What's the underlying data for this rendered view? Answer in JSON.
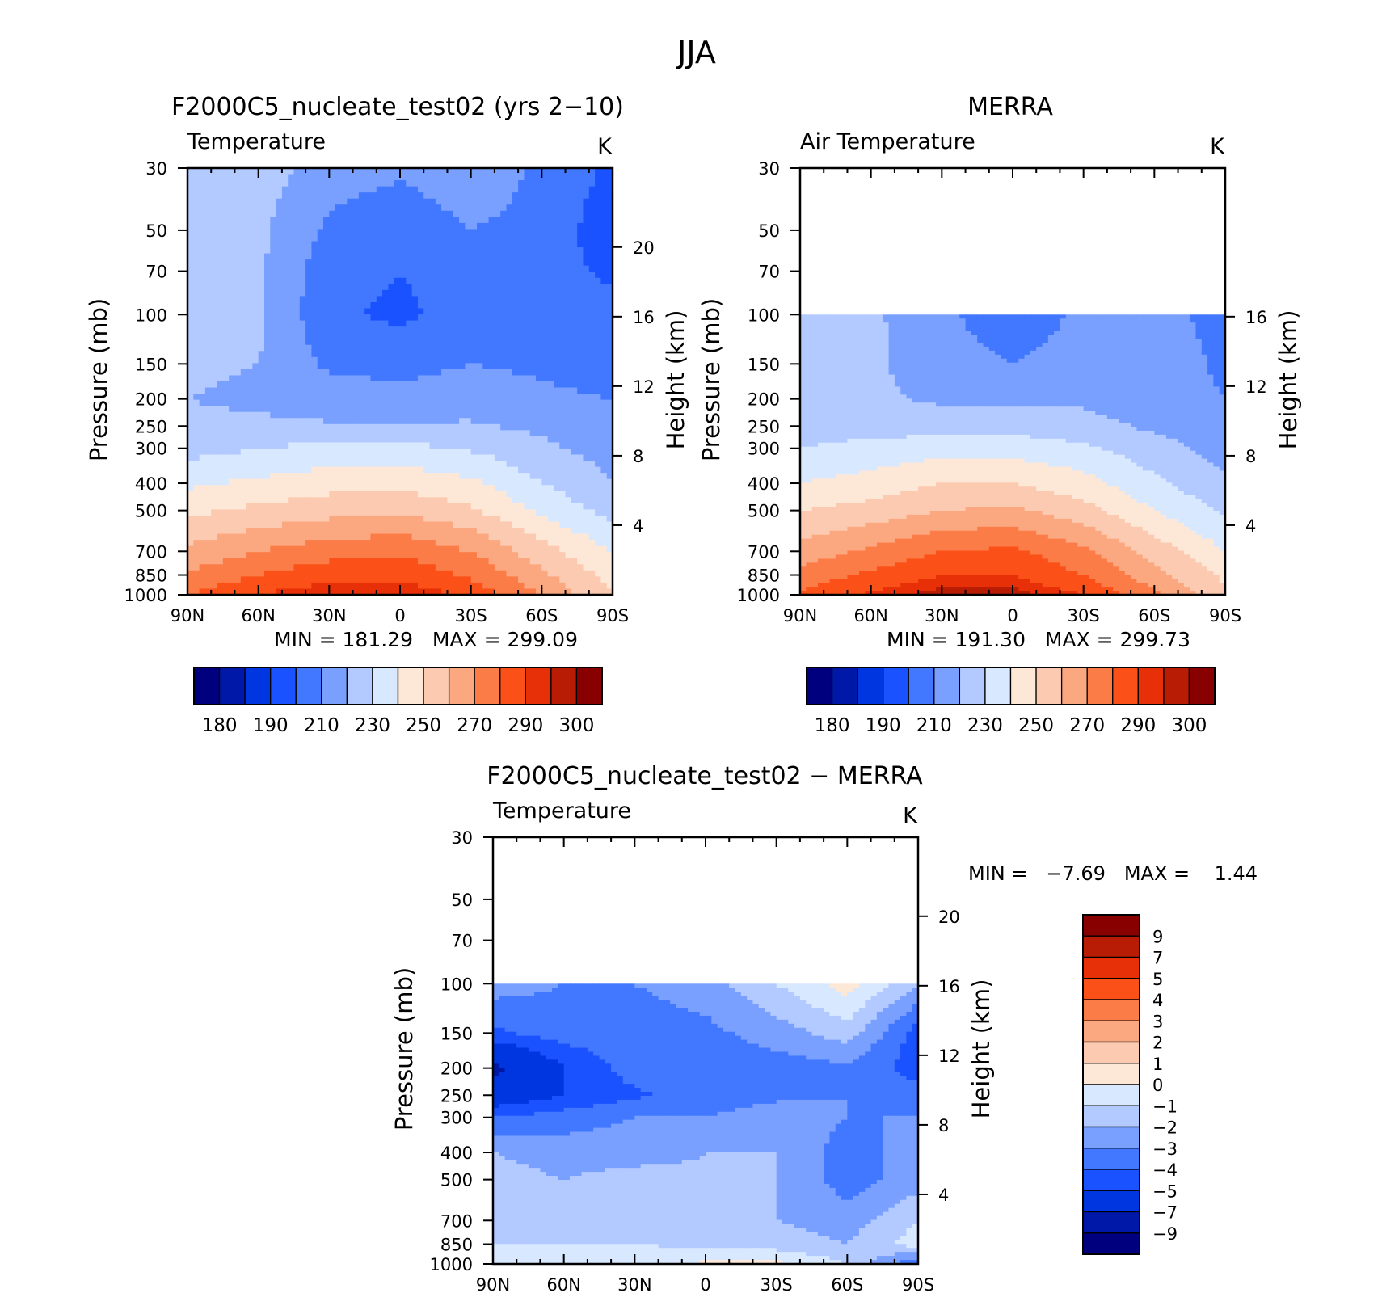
{
  "figure": {
    "title": "JJA"
  },
  "colors": {
    "abs_levels": [
      "#00007f",
      "#0018a8",
      "#0036e0",
      "#1a52ff",
      "#4278ff",
      "#7aa0ff",
      "#b2caff",
      "#d8e8ff",
      "#fde8d8",
      "#fccab0",
      "#fba880",
      "#fc7c48",
      "#fb5018",
      "#e83008",
      "#b81c04",
      "#880000"
    ],
    "diff_levels": [
      "#00007f",
      "#0018a8",
      "#0036e0",
      "#1a52ff",
      "#4278ff",
      "#7aa0ff",
      "#b2caff",
      "#d8e8ff",
      "#fde8d8",
      "#fccab0",
      "#fba880",
      "#fc7c48",
      "#fb5018",
      "#e83008",
      "#b81c04",
      "#880000"
    ]
  },
  "panels": {
    "model": {
      "title": "F2000C5_nucleate_test02 (yrs 2−10)",
      "variable": "Temperature",
      "units": "K",
      "ylabel": "Pressure (mb)",
      "y2label": "Height (km)",
      "min_label": "MIN =",
      "min_value": "181.29",
      "max_label": "MAX =",
      "max_value": "299.09"
    },
    "obs": {
      "title": "MERRA",
      "variable": "Air Temperature",
      "units": "K",
      "ylabel": "Pressure (mb)",
      "y2label": "Height (km)",
      "min_label": "MIN =",
      "min_value": "191.30",
      "max_label": "MAX =",
      "max_value": "299.73"
    },
    "diff": {
      "title": "F2000C5_nucleate_test02 − MERRA",
      "variable": "Temperature",
      "units": "K",
      "ylabel": "Pressure (mb)",
      "y2label": "Height (km)",
      "min_label": "MIN =",
      "min_value": "−7.69",
      "max_label": "MAX =",
      "max_value": "1.44"
    }
  },
  "colorbar_abs": {
    "labels": [
      "180",
      "190",
      "210",
      "230",
      "250",
      "270",
      "290",
      "300"
    ]
  },
  "colorbar_diff": {
    "labels": [
      "9",
      "7",
      "5",
      "4",
      "3",
      "2",
      "1",
      "0",
      "−1",
      "−2",
      "−3",
      "−4",
      "−5",
      "−7",
      "−9"
    ]
  },
  "chart_data": [
    {
      "type": "heatmap",
      "title": "F2000C5_nucleate_test02 (yrs 2−10)",
      "subtitle": "Temperature",
      "units": "K",
      "xlabel": "",
      "ylabel": "Pressure (mb)",
      "y2label": "Height (km)",
      "x_ticks": [
        "90N",
        "60N",
        "30N",
        "0",
        "30S",
        "60S",
        "90S"
      ],
      "y_ticks": [
        30,
        50,
        70,
        100,
        150,
        200,
        250,
        300,
        400,
        500,
        700,
        850,
        1000
      ],
      "y_scale": "log",
      "y2_ticks": [
        4,
        8,
        12,
        16,
        20
      ],
      "x": [
        -90,
        -60,
        -30,
        0,
        30,
        60,
        90
      ],
      "y": [
        30,
        50,
        70,
        100,
        150,
        200,
        250,
        300,
        400,
        500,
        700,
        850,
        1000
      ],
      "z": [
        [
          230,
          225,
          215,
          212,
          218,
          208,
          198
        ],
        [
          230,
          222,
          208,
          202,
          210,
          206,
          194
        ],
        [
          228,
          222,
          204,
          200,
          204,
          204,
          198
        ],
        [
          225,
          222,
          202,
          198,
          204,
          206,
          204
        ],
        [
          222,
          220,
          208,
          206,
          210,
          208,
          206
        ],
        [
          220,
          218,
          215,
          214,
          216,
          212,
          210
        ],
        [
          222,
          222,
          221,
          221,
          221,
          218,
          214
        ],
        [
          226,
          230,
          233,
          233,
          229,
          222,
          216
        ],
        [
          238,
          242,
          246,
          247,
          242,
          230,
          220
        ],
        [
          248,
          252,
          256,
          258,
          252,
          238,
          226
        ],
        [
          262,
          270,
          276,
          278,
          270,
          254,
          240
        ],
        [
          272,
          280,
          286,
          287,
          278,
          262,
          246
        ],
        [
          280,
          290,
          296,
          296,
          288,
          270,
          250
        ]
      ],
      "levels": [
        180,
        185,
        190,
        200,
        210,
        220,
        230,
        240,
        250,
        260,
        270,
        280,
        290,
        295,
        300
      ],
      "colorbar_labels": [
        180,
        190,
        210,
        230,
        250,
        270,
        290,
        300
      ],
      "min": 181.29,
      "max": 299.09,
      "grid": false
    },
    {
      "type": "heatmap",
      "title": "MERRA",
      "subtitle": "Air Temperature",
      "units": "K",
      "xlabel": "",
      "ylabel": "Pressure (mb)",
      "y2label": "Height (km)",
      "x_ticks": [
        "90N",
        "60N",
        "30N",
        "0",
        "30S",
        "60S",
        "90S"
      ],
      "y_ticks": [
        30,
        50,
        70,
        100,
        150,
        200,
        250,
        300,
        400,
        500,
        700,
        850,
        1000
      ],
      "y_scale": "log",
      "y2_ticks": [
        4,
        8,
        12,
        16
      ],
      "x": [
        -90,
        -60,
        -30,
        0,
        30,
        60,
        90
      ],
      "y": [
        100,
        150,
        200,
        250,
        300,
        400,
        500,
        700,
        850,
        1000
      ],
      "z": [
        [
          228,
          222,
          212,
          204,
          212,
          214,
          206
        ],
        [
          226,
          222,
          214,
          210,
          214,
          216,
          208
        ],
        [
          225,
          222,
          218,
          218,
          218,
          214,
          210
        ],
        [
          226,
          226,
          226,
          226,
          224,
          218,
          214
        ],
        [
          230,
          233,
          236,
          236,
          232,
          224,
          216
        ],
        [
          240,
          244,
          250,
          250,
          244,
          232,
          222
        ],
        [
          250,
          254,
          260,
          262,
          254,
          240,
          228
        ],
        [
          264,
          272,
          280,
          282,
          272,
          256,
          240
        ],
        [
          274,
          282,
          290,
          290,
          280,
          264,
          248
        ],
        [
          282,
          292,
          298,
          298,
          290,
          272,
          252
        ]
      ],
      "levels": [
        180,
        185,
        190,
        200,
        210,
        220,
        230,
        240,
        250,
        260,
        270,
        280,
        290,
        295,
        300
      ],
      "colorbar_labels": [
        180,
        190,
        210,
        230,
        250,
        270,
        290,
        300
      ],
      "min": 191.3,
      "max": 299.73,
      "grid": false
    },
    {
      "type": "heatmap",
      "title": "F2000C5_nucleate_test02 − MERRA",
      "subtitle": "Temperature",
      "units": "K",
      "xlabel": "",
      "ylabel": "Pressure (mb)",
      "y2label": "Height (km)",
      "x_ticks": [
        "90N",
        "60N",
        "30N",
        "0",
        "30S",
        "60S",
        "90S"
      ],
      "y_ticks": [
        30,
        50,
        70,
        100,
        150,
        200,
        250,
        300,
        400,
        500,
        700,
        850,
        1000
      ],
      "y_scale": "log",
      "y2_ticks": [
        4,
        8,
        12,
        16,
        20
      ],
      "x": [
        -90,
        -60,
        -30,
        0,
        30,
        60,
        90
      ],
      "y": [
        100,
        150,
        200,
        250,
        300,
        400,
        500,
        700,
        850,
        1000
      ],
      "z": [
        [
          -2.5,
          -3,
          -3,
          -2.5,
          -1,
          0.5,
          -2
        ],
        [
          -4.2,
          -3.5,
          -3.5,
          -3.3,
          -2.5,
          -1.5,
          -4.5
        ],
        [
          -7.5,
          -5,
          -3.5,
          -3.5,
          -3.5,
          -3.2,
          -4.5
        ],
        [
          -6,
          -5,
          -4.2,
          -3.5,
          -3.2,
          -3,
          -3.5
        ],
        [
          -4,
          -3.5,
          -3,
          -3,
          -2.5,
          -3,
          -3
        ],
        [
          -2,
          -2.5,
          -2.5,
          -2,
          -2,
          -3.5,
          -2.5
        ],
        [
          -1.5,
          -2,
          -1.5,
          -1.8,
          -2,
          -3.5,
          -2.5
        ],
        [
          -1,
          -1.5,
          -1.5,
          -2,
          -2,
          -2.5,
          -1
        ],
        [
          -1,
          -1,
          -1,
          -1.2,
          -1.5,
          -2,
          -0.5
        ],
        [
          -1,
          -0.5,
          -0.5,
          0.2,
          0.3,
          -1,
          -4
        ]
      ],
      "levels": [
        -9,
        -7,
        -5,
        -4,
        -3,
        -2,
        -1,
        0,
        1,
        2,
        3,
        4,
        5,
        7,
        9
      ],
      "colorbar_labels": [
        9,
        7,
        5,
        4,
        3,
        2,
        1,
        0,
        -1,
        -2,
        -3,
        -4,
        -5,
        -7,
        -9
      ],
      "min": -7.69,
      "max": 1.44,
      "grid": false
    }
  ]
}
